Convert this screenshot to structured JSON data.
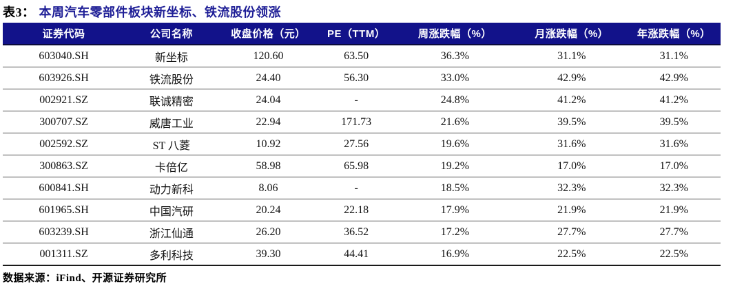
{
  "title": {
    "label": "表3：",
    "text": "本周汽车零部件板块新坐标、铁流股份领涨"
  },
  "table": {
    "headers": [
      "证券代码",
      "公司名称",
      "收盘价格（元）",
      "PE（TTM）",
      "周涨跌幅（%）",
      "月涨跌幅（%）",
      "年涨跌幅（%）"
    ],
    "col_names": [
      "security-code",
      "company-name",
      "closing-price",
      "pe-ttm",
      "weekly-change",
      "monthly-change",
      "yearly-change"
    ],
    "col_widths": [
      "17%",
      "13%",
      "14%",
      "10.5%",
      "17%",
      "15.5%",
      "13%"
    ],
    "rows": [
      [
        "603040.SH",
        "新坐标",
        "120.60",
        "63.50",
        "36.3%",
        "31.1%",
        "31.1%"
      ],
      [
        "603926.SH",
        "铁流股份",
        "24.40",
        "56.30",
        "33.0%",
        "42.9%",
        "42.9%"
      ],
      [
        "002921.SZ",
        "联诚精密",
        "24.04",
        "-",
        "24.8%",
        "41.2%",
        "41.2%"
      ],
      [
        "300707.SZ",
        "威唐工业",
        "22.94",
        "171.73",
        "21.6%",
        "39.5%",
        "39.5%"
      ],
      [
        "002592.SZ",
        "ST 八菱",
        "10.92",
        "27.56",
        "19.6%",
        "31.6%",
        "31.6%"
      ],
      [
        "300863.SZ",
        "卡倍亿",
        "58.98",
        "65.98",
        "19.2%",
        "17.0%",
        "17.0%"
      ],
      [
        "600841.SH",
        "动力新科",
        "8.06",
        "-",
        "18.5%",
        "32.3%",
        "32.3%"
      ],
      [
        "601965.SH",
        "中国汽研",
        "20.24",
        "22.18",
        "17.9%",
        "21.9%",
        "21.9%"
      ],
      [
        "603239.SH",
        "浙江仙通",
        "26.20",
        "36.52",
        "17.2%",
        "27.7%",
        "27.7%"
      ],
      [
        "001311.SZ",
        "多利科技",
        "39.30",
        "44.41",
        "16.9%",
        "22.5%",
        "22.5%"
      ]
    ]
  },
  "footer": {
    "source": "数据来源：iFind、开源证券研究所"
  },
  "colors": {
    "header_bg": "#12128A",
    "title_blue": "#1E1E96",
    "row_separator": "#4d4d4d",
    "bottom_border": "#1a1a1a"
  }
}
